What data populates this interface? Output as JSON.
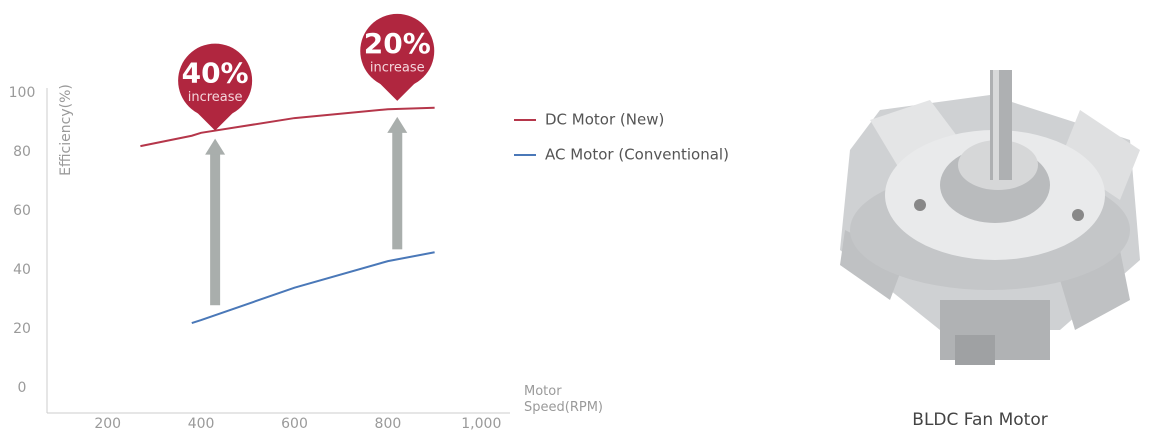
{
  "chart_data": {
    "type": "line",
    "y_label": "Efficiency(%)",
    "x_label": "Motor Speed(RPM)",
    "x": [
      270,
      380,
      400,
      600,
      800,
      900
    ],
    "series": [
      {
        "name": "DC Motor (New)",
        "color": "#b5364a",
        "values": [
          82,
          85.5,
          86.5,
          91.5,
          94.5,
          95
        ]
      },
      {
        "name": "AC Motor (Conventional)",
        "color": "#4a78b8",
        "values": [
          null,
          22,
          23,
          34,
          43,
          46
        ]
      }
    ],
    "xlim": [
      70,
      1040
    ],
    "ylim": [
      -8.5,
      100
    ],
    "xticks": [
      200,
      400,
      600,
      800,
      {
        "value": 1000,
        "label": "1,000"
      }
    ],
    "yticks": [
      0,
      20,
      40,
      60,
      80,
      100
    ],
    "annotations": [
      {
        "x": 430,
        "text": "40%",
        "subtext": "increase",
        "color": "#b0263f"
      },
      {
        "x": 820,
        "text": "20%",
        "subtext": "increase",
        "color": "#b0263f"
      }
    ]
  },
  "photo": {
    "caption": "BLDC Fan Motor"
  }
}
